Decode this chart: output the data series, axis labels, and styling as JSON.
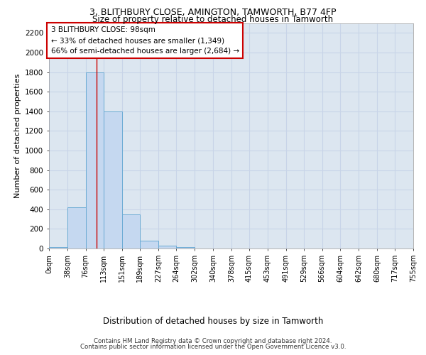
{
  "title1": "3, BLITHBURY CLOSE, AMINGTON, TAMWORTH, B77 4FP",
  "title2": "Size of property relative to detached houses in Tamworth",
  "xlabel": "Distribution of detached houses by size in Tamworth",
  "ylabel": "Number of detached properties",
  "bar_edges": [
    0,
    38,
    76,
    113,
    151,
    189,
    227,
    264,
    302,
    340,
    378,
    415,
    453,
    491,
    529,
    566,
    604,
    642,
    680,
    717,
    755
  ],
  "bar_heights": [
    15,
    420,
    1800,
    1400,
    350,
    80,
    30,
    15,
    0,
    0,
    0,
    0,
    0,
    0,
    0,
    0,
    0,
    0,
    0,
    0
  ],
  "bar_color": "#c5d8f0",
  "bar_edge_color": "#6aaad4",
  "property_line_x": 98,
  "property_line_color": "#cc0000",
  "ylim": [
    0,
    2300
  ],
  "annotation_text": "3 BLITHBURY CLOSE: 98sqm\n← 33% of detached houses are smaller (1,349)\n66% of semi-detached houses are larger (2,684) →",
  "annotation_box_color": "#cc0000",
  "annotation_bg_color": "#ffffff",
  "grid_color": "#c8d4e8",
  "bg_color": "#dce6f0",
  "footer_line1": "Contains HM Land Registry data © Crown copyright and database right 2024.",
  "footer_line2": "Contains public sector information licensed under the Open Government Licence v3.0.",
  "tick_labels": [
    "0sqm",
    "38sqm",
    "76sqm",
    "113sqm",
    "151sqm",
    "189sqm",
    "227sqm",
    "264sqm",
    "302sqm",
    "340sqm",
    "378sqm",
    "415sqm",
    "453sqm",
    "491sqm",
    "529sqm",
    "566sqm",
    "604sqm",
    "642sqm",
    "680sqm",
    "717sqm",
    "755sqm"
  ],
  "yticks": [
    0,
    200,
    400,
    600,
    800,
    1000,
    1200,
    1400,
    1600,
    1800,
    2000,
    2200
  ]
}
